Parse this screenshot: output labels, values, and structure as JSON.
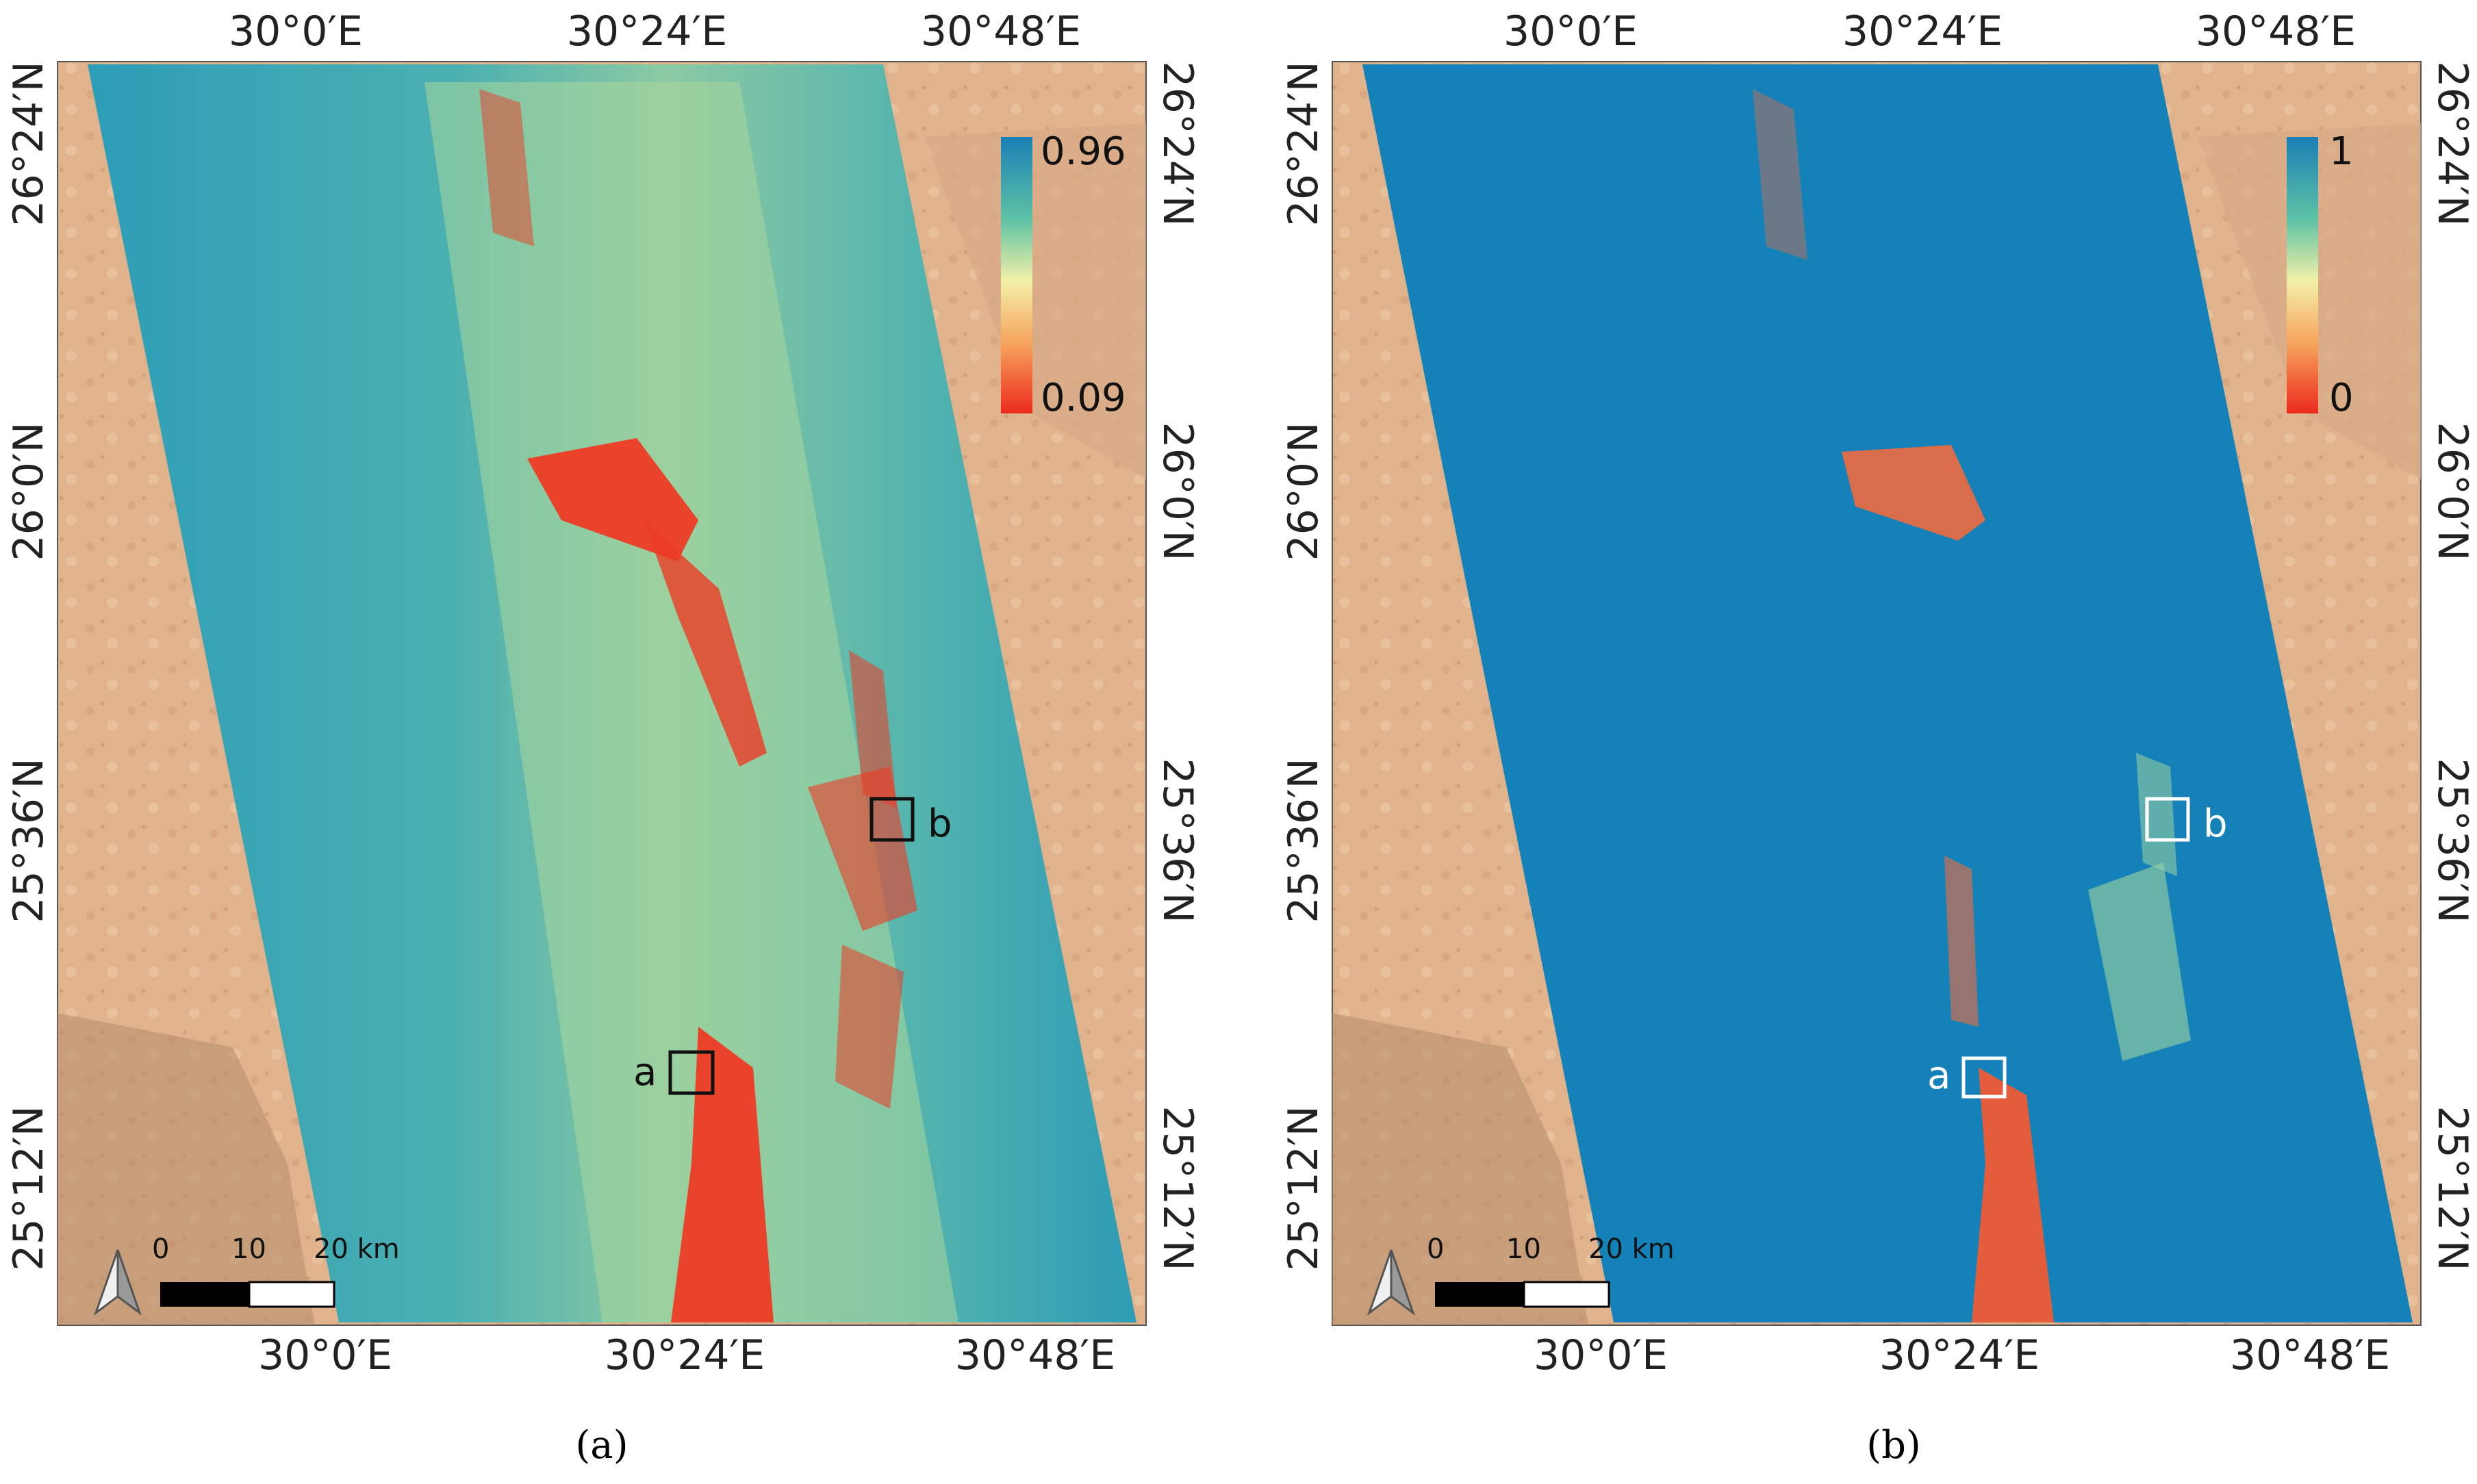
{
  "panels": [
    {
      "id": "a",
      "caption": "(a)",
      "colorbar": {
        "max_label": "0.96",
        "min_label": "0.09",
        "colors": [
          "#1a7fb3",
          "#5fc3a6",
          "#f3f0a8",
          "#f7a35c",
          "#ec2a1d"
        ]
      },
      "sites": [
        {
          "label": "a"
        },
        {
          "label": "b"
        }
      ],
      "site_color": "#111111"
    },
    {
      "id": "b",
      "caption": "(b)",
      "colorbar": {
        "max_label": "1",
        "min_label": "0",
        "colors": [
          "#1a7fb3",
          "#5fc3a6",
          "#f3f0a8",
          "#f7a35c",
          "#ec2a1d"
        ]
      },
      "sites": [
        {
          "label": "a"
        },
        {
          "label": "b"
        }
      ],
      "site_color": "#ffffff"
    }
  ],
  "axes": {
    "lon_ticks": [
      "30°0′E",
      "30°24′E",
      "30°48′E"
    ],
    "lat_ticks": [
      "26°24′N",
      "26°0′N",
      "25°36′N",
      "25°12′N"
    ]
  },
  "scalebar": {
    "labels": [
      "0",
      "10",
      "20 km"
    ]
  },
  "north_arrow": "north-arrow-icon",
  "colors": {
    "desert": "#e2b48e",
    "desert_dark": "#caa07c",
    "swath_blue": "#1482b8",
    "swath_teal": "#37a5b3",
    "hot": "#ee3b25"
  }
}
